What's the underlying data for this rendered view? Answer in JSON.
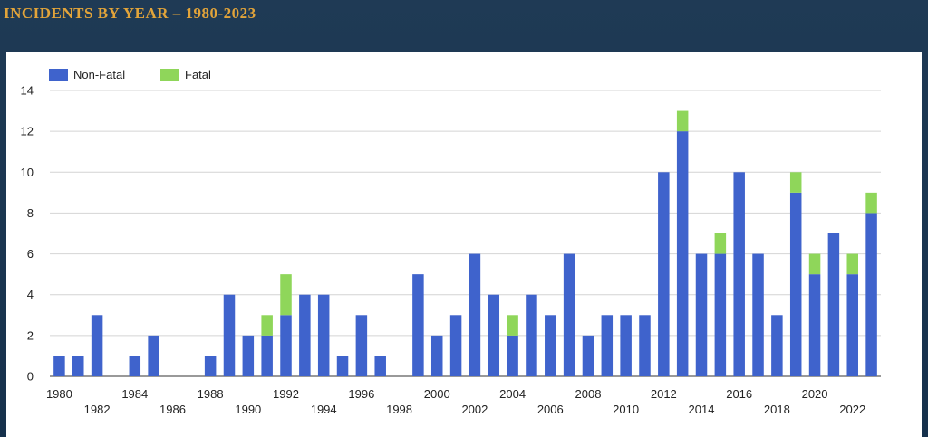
{
  "header": {
    "title": "INCIDENTS BY YEAR – 1980-2023"
  },
  "chart_data": {
    "type": "bar",
    "stacked": true,
    "title": "INCIDENTS BY YEAR – 1980-2023",
    "xlabel": "",
    "ylabel": "",
    "ylim": [
      0,
      14
    ],
    "yticks": [
      0,
      2,
      4,
      6,
      8,
      10,
      12,
      14
    ],
    "grid": true,
    "legend": {
      "placement": "top-left"
    },
    "categories": [
      1980,
      1981,
      1982,
      1983,
      1984,
      1985,
      1986,
      1987,
      1988,
      1989,
      1990,
      1991,
      1992,
      1993,
      1994,
      1995,
      1996,
      1997,
      1998,
      1999,
      2000,
      2001,
      2002,
      2003,
      2004,
      2005,
      2006,
      2007,
      2008,
      2009,
      2010,
      2011,
      2012,
      2013,
      2014,
      2015,
      2016,
      2017,
      2018,
      2019,
      2020,
      2021,
      2022,
      2023
    ],
    "tick_labels_upper": [
      "1980",
      "1984",
      "1988",
      "1992",
      "1996",
      "2000",
      "2004",
      "2008",
      "2012",
      "2016",
      "2020"
    ],
    "tick_labels_lower": [
      "1982",
      "1986",
      "1990",
      "1994",
      "1998",
      "2002",
      "2006",
      "2010",
      "2014",
      "2018",
      "2022"
    ],
    "series": [
      {
        "name": "Non-Fatal",
        "color": "#3f63cc",
        "values": [
          1,
          1,
          3,
          0,
          1,
          2,
          0,
          0,
          1,
          4,
          2,
          2,
          3,
          4,
          4,
          1,
          3,
          1,
          0,
          5,
          2,
          3,
          6,
          4,
          2,
          4,
          3,
          6,
          2,
          3,
          3,
          3,
          10,
          12,
          6,
          6,
          10,
          6,
          3,
          9,
          5,
          7,
          5,
          8
        ]
      },
      {
        "name": "Fatal",
        "color": "#8fd65a",
        "values": [
          0,
          0,
          0,
          0,
          0,
          0,
          0,
          0,
          0,
          0,
          0,
          1,
          2,
          0,
          0,
          0,
          0,
          0,
          0,
          0,
          0,
          0,
          0,
          0,
          1,
          0,
          0,
          0,
          0,
          0,
          0,
          0,
          0,
          1,
          0,
          1,
          0,
          0,
          0,
          1,
          1,
          0,
          1,
          1
        ]
      }
    ]
  }
}
